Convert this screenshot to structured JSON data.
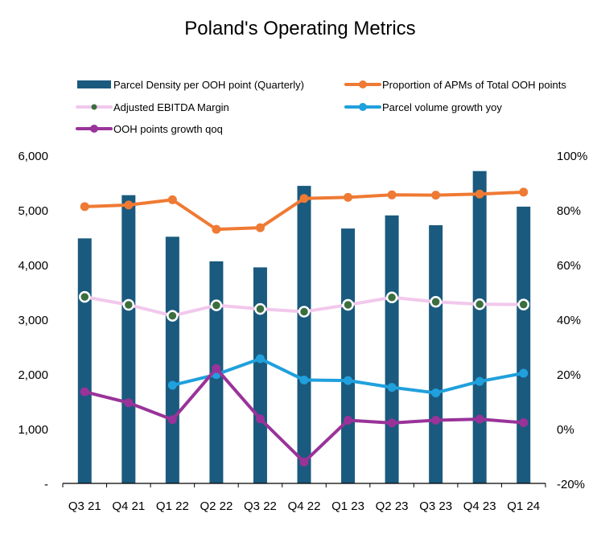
{
  "chart_data": {
    "type": "bar+line",
    "title": "Poland's Operating Metrics",
    "categories": [
      "Q3 21",
      "Q4 21",
      "Q1 22",
      "Q2 22",
      "Q3 22",
      "Q4 22",
      "Q1 23",
      "Q2 23",
      "Q3 23",
      "Q4 23",
      "Q1 24"
    ],
    "left_axis": {
      "min": 0,
      "max": 6000,
      "ticks": [
        "-",
        "1,000",
        "2,000",
        "3,000",
        "4,000",
        "5,000",
        "6,000"
      ]
    },
    "right_axis": {
      "min": -20,
      "max": 100,
      "ticks": [
        "-20%",
        "0%",
        "20%",
        "40%",
        "60%",
        "80%",
        "100%"
      ]
    },
    "grid": false,
    "legend_position": "top",
    "series": [
      {
        "name": "Parcel Density per OOH point (Quarterly)",
        "kind": "bar",
        "axis": "left",
        "color": "#1a5a7e",
        "values": [
          4480,
          5270,
          4510,
          4060,
          3950,
          5440,
          4660,
          4900,
          4720,
          5710,
          5060
        ]
      },
      {
        "name": "Proportion of APMs of Total OOH points",
        "kind": "line",
        "axis": "right",
        "color": "#ef7a34",
        "values": [
          81.2,
          81.8,
          83.7,
          72.9,
          73.5,
          84.2,
          84.6,
          85.5,
          85.4,
          85.8,
          86.5
        ]
      },
      {
        "name": "Adjusted EBITDA Margin",
        "kind": "line",
        "axis": "right",
        "color": "#f2c8ec",
        "marker": "#3b6e3f",
        "values": [
          48.2,
          45.3,
          41.3,
          45.1,
          43.8,
          42.8,
          45.3,
          48.0,
          46.4,
          45.5,
          45.4
        ]
      },
      {
        "name": "Parcel volume growth yoy",
        "kind": "line",
        "axis": "right",
        "color": "#20a0dc",
        "values": [
          null,
          null,
          15.9,
          19.8,
          25.6,
          17.8,
          17.6,
          15.1,
          13.1,
          17.3,
          20.3
        ]
      },
      {
        "name": "OOH points growth qoq",
        "kind": "line",
        "axis": "right",
        "color": "#993399",
        "values": [
          13.5,
          9.5,
          3.3,
          22.0,
          3.6,
          -12.2,
          3.1,
          2.1,
          3.1,
          3.5,
          2.2
        ]
      }
    ]
  }
}
